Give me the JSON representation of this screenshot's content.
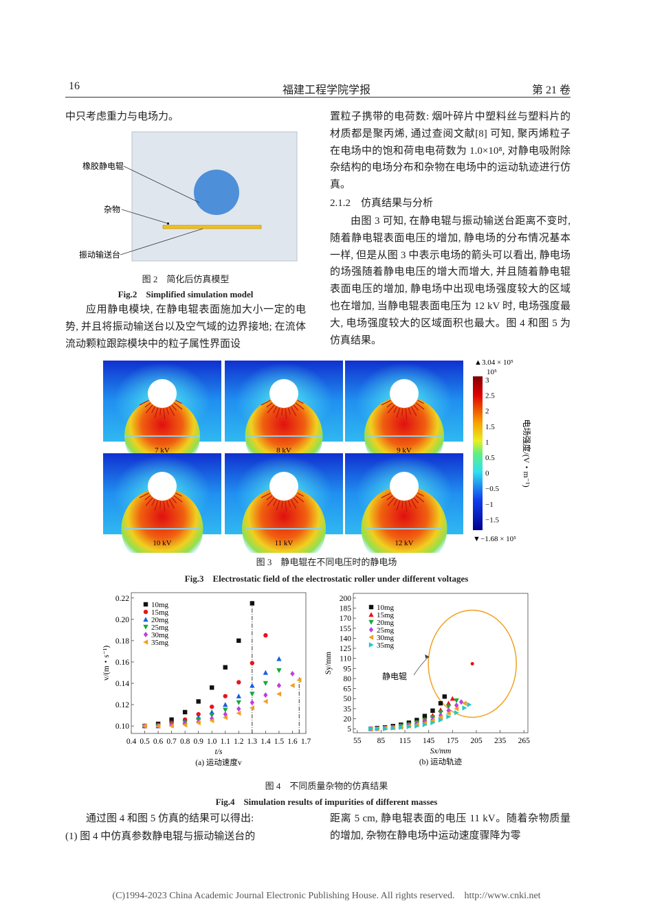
{
  "header": {
    "page_number": "16",
    "journal": "福建工程学院学报",
    "volume": "第 21 卷"
  },
  "body": {
    "left_intro": "中只考虑重力与电场力。",
    "left_para": "应用静电模块, 在静电辊表面施加大小一定的电势, 并且将振动输送台以及空气域的边界接地; 在流体流动颗粒跟踪模块中的粒子属性界面设",
    "right_para1": "置粒子携带的电荷数: 烟叶碎片中塑料丝与塑料片的材质都是聚丙烯, 通过查阅文献[8] 可知, 聚丙烯粒子在电场中的饱和荷电电荷数为 1.0×10⁸, 对静电吸附除杂结构的电场分布和杂物在电场中的运动轨迹进行仿真。",
    "section_heading": "2.1.2　仿真结果与分析",
    "right_para2": "由图 3 可知, 在静电辊与振动输送台距离不变时, 随着静电辊表面电压的增加, 静电场的分布情况基本一样, 但是从图 3 中表示电场的箭头可以看出, 静电场的场强随着静电电压的增大而增大, 并且随着静电辊表面电压的增加, 静电场中出现电场强度较大的区域也在增加, 当静电辊表面电压为 12 kV 时, 电场强度最大, 电场强度较大的区域面积也最大。图 4 和图 5 为仿真结果。",
    "bottom_left": [
      "通过图 4 和图 5 仿真的结果可以得出:",
      "(1) 图 4 中仿真参数静电辊与振动输送台的"
    ],
    "bottom_right": "距离 5 cm, 静电辊表面的电压 11 kV。随着杂物质量的增加, 杂物在静电场中运动速度骤降为零"
  },
  "figure2": {
    "labels": [
      "橡胶静电辊",
      "杂物",
      "振动输送台"
    ],
    "caption_cn": "图 2　简化后仿真模型",
    "caption_en": "Fig.2　Simplified simulation model"
  },
  "figure3": {
    "panels": [
      "7 kV",
      "8 kV",
      "9 kV",
      "10 kV",
      "11 kV",
      "12 kV"
    ],
    "colorbar": {
      "max_label": "3.04 × 10⁵",
      "scale_label": "10⁵",
      "ticks": [
        "3",
        "2.5",
        "2",
        "1.5",
        "1",
        "0.5",
        "0",
        "−0.5",
        "−1",
        "−1.5"
      ],
      "min_label": "−1.68 × 10⁵",
      "title": "电场强度/(V・m⁻¹)"
    },
    "caption_cn": "图 3　静电辊在不同电压时的静电场",
    "caption_en": "Fig.3　Electrostatic field of the electrostatic roller under different voltages"
  },
  "chart_data": [
    {
      "type": "scatter",
      "caption": "(a) 运动速度v",
      "xlabel": "t/s",
      "ylabel": "v/(m・s⁻¹)",
      "xlim": [
        0.4,
        1.7
      ],
      "ylim": [
        0.093,
        0.225
      ],
      "xticks": [
        0.4,
        0.5,
        0.6,
        0.7,
        0.8,
        0.9,
        {
          "value": 1,
          "label": "1.0"
        },
        1.1,
        1.2,
        1.3,
        1.4,
        1.5,
        1.6,
        1.7
      ],
      "yticks": [
        {
          "value": 0.1,
          "label": "0.10"
        },
        0.12,
        0.14,
        0.16,
        0.18,
        {
          "value": 0.2,
          "label": "0.20"
        },
        0.22
      ],
      "vlines": [
        1.3,
        1.65
      ],
      "legend": "upper left",
      "series": [
        {
          "name": "10mg",
          "color": "#111111",
          "marker": "square",
          "x": [
            0.5,
            0.6,
            0.7,
            0.8,
            0.9,
            1.0,
            1.1,
            1.2,
            1.3
          ],
          "values": [
            0.1,
            0.102,
            0.106,
            0.113,
            0.123,
            0.136,
            0.155,
            0.18,
            0.215
          ]
        },
        {
          "name": "15mg",
          "color": "#e8141c",
          "marker": "circle",
          "x": [
            0.5,
            0.6,
            0.7,
            0.8,
            0.9,
            1.0,
            1.1,
            1.2,
            1.3,
            1.4
          ],
          "values": [
            0.1,
            0.101,
            0.103,
            0.106,
            0.111,
            0.118,
            0.128,
            0.141,
            0.159,
            0.185
          ]
        },
        {
          "name": "20mg",
          "color": "#1a5fe0",
          "marker": "triangle-up",
          "x": [
            0.5,
            0.6,
            0.7,
            0.8,
            0.9,
            1.0,
            1.1,
            1.2,
            1.3,
            1.4,
            1.5
          ],
          "values": [
            0.1,
            0.1,
            0.102,
            0.104,
            0.108,
            0.113,
            0.12,
            0.128,
            0.138,
            0.15,
            0.163
          ]
        },
        {
          "name": "25mg",
          "color": "#17a83a",
          "marker": "triangle-down",
          "x": [
            0.5,
            0.6,
            0.7,
            0.8,
            0.9,
            1.0,
            1.1,
            1.2,
            1.3,
            1.4,
            1.5
          ],
          "values": [
            0.1,
            0.1,
            0.101,
            0.103,
            0.106,
            0.11,
            0.115,
            0.122,
            0.13,
            0.14,
            0.152
          ]
        },
        {
          "name": "30mg",
          "color": "#c03ee0",
          "marker": "diamond",
          "x": [
            0.5,
            0.6,
            0.7,
            0.8,
            0.9,
            1.0,
            1.1,
            1.2,
            1.3,
            1.4,
            1.5,
            1.6
          ],
          "values": [
            0.1,
            0.1,
            0.101,
            0.102,
            0.104,
            0.107,
            0.111,
            0.116,
            0.122,
            0.129,
            0.138,
            0.149
          ]
        },
        {
          "name": "35mg",
          "color": "#f0a020",
          "marker": "triangle-left",
          "x": [
            0.5,
            0.6,
            0.7,
            0.8,
            0.9,
            1.0,
            1.1,
            1.2,
            1.3,
            1.4,
            1.5,
            1.6,
            1.65
          ],
          "values": [
            0.1,
            0.1,
            0.1,
            0.101,
            0.103,
            0.105,
            0.108,
            0.112,
            0.117,
            0.123,
            0.13,
            0.138,
            0.143
          ]
        }
      ]
    },
    {
      "type": "scatter",
      "caption": "(b) 运动轨迹",
      "xlabel": "Sx/mm",
      "ylabel": "Sy/mm",
      "xlim": [
        50,
        270
      ],
      "ylim": [
        -1,
        207
      ],
      "xticks": [
        55,
        85,
        115,
        145,
        175,
        205,
        235,
        265
      ],
      "yticks": [
        5,
        20,
        35,
        50,
        65,
        80,
        95,
        110,
        125,
        140,
        155,
        170,
        185,
        200
      ],
      "roller_center": {
        "x": 200,
        "y": 102
      },
      "annotation": "静电辊",
      "legend": "upper left",
      "series": [
        {
          "name": "10mg",
          "color": "#111111",
          "marker": "square",
          "x": [
            72,
            80,
            90,
            100,
            110,
            120,
            130,
            140,
            150,
            160,
            165
          ],
          "values": [
            5,
            6,
            7,
            9,
            11,
            14,
            18,
            24,
            32,
            43,
            53
          ]
        },
        {
          "name": "15mg",
          "color": "#e8141c",
          "marker": "triangle-up",
          "x": [
            72,
            80,
            90,
            100,
            110,
            120,
            130,
            140,
            150,
            160,
            170,
            175
          ],
          "values": [
            5,
            6,
            7,
            8,
            10,
            12,
            15,
            19,
            25,
            33,
            43,
            50
          ]
        },
        {
          "name": "20mg",
          "color": "#17a83a",
          "marker": "triangle-down",
          "x": [
            72,
            80,
            90,
            100,
            110,
            120,
            130,
            140,
            150,
            160,
            170,
            180
          ],
          "values": [
            5,
            5,
            6,
            7,
            9,
            11,
            14,
            17,
            22,
            29,
            38,
            47
          ]
        },
        {
          "name": "25mg",
          "color": "#c03ee0",
          "marker": "diamond",
          "x": [
            72,
            80,
            90,
            100,
            110,
            120,
            130,
            140,
            150,
            160,
            170,
            180,
            186
          ],
          "values": [
            5,
            5,
            6,
            7,
            8,
            10,
            12,
            15,
            19,
            25,
            32,
            40,
            45
          ]
        },
        {
          "name": "30mg",
          "color": "#f0a020",
          "marker": "triangle-left",
          "x": [
            72,
            80,
            90,
            100,
            110,
            120,
            130,
            140,
            150,
            160,
            170,
            180,
            190
          ],
          "values": [
            5,
            5,
            6,
            6,
            7,
            9,
            11,
            13,
            17,
            22,
            28,
            35,
            43
          ]
        },
        {
          "name": "35mg",
          "color": "#22c8c8",
          "marker": "triangle-right",
          "x": [
            72,
            80,
            90,
            100,
            110,
            120,
            130,
            140,
            150,
            160,
            170,
            180,
            190,
            196
          ],
          "values": [
            5,
            5,
            5,
            6,
            7,
            8,
            9,
            11,
            14,
            18,
            23,
            29,
            36,
            41
          ]
        }
      ]
    }
  ],
  "figure4": {
    "caption_cn": "图 4　不同质量杂物的仿真结果",
    "caption_en": "Fig.4　Simulation results of impurities of different masses"
  },
  "footer": "(C)1994-2023 China Academic Journal Electronic Publishing House. All rights reserved.    http://www.cnki.net"
}
